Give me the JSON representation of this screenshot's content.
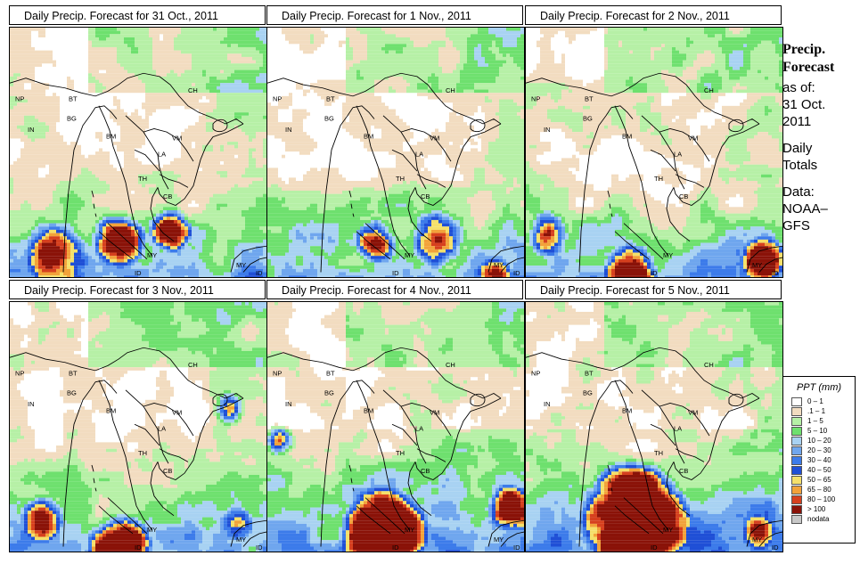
{
  "panels": [
    {
      "title": "Daily Precip. Forecast for  31 Oct., 2011"
    },
    {
      "title": "Daily Precip. Forecast for  1 Nov., 2011"
    },
    {
      "title": "Daily Precip. Forecast for  2 Nov., 2011"
    },
    {
      "title": "Daily Precip. Forecast for  3 Nov., 2011"
    },
    {
      "title": "Daily Precip. Forecast for  4 Nov., 2011"
    },
    {
      "title": "Daily Precip. Forecast for  5 Nov., 2011"
    }
  ],
  "map_labels": [
    "NP",
    "BT",
    "BG",
    "IN",
    "BM",
    "CH",
    "VM",
    "LA",
    "TH",
    "CB",
    "MY",
    "MY",
    "ID",
    "ID"
  ],
  "sidebar": {
    "heading1": "Precip.",
    "heading2": "Forecast",
    "asof": "as of:",
    "date1": "31 Oct.",
    "date2": "2011",
    "daily": "Daily",
    "totals": "Totals",
    "data_label": "Data:",
    "source1": "NOAA–",
    "source2": "GFS"
  },
  "legend": {
    "title": "PPT (mm)",
    "items": [
      {
        "label": "0 – 1",
        "color": "#ffffff"
      },
      {
        "label": ".1 – 1",
        "color": "#f2dcc0"
      },
      {
        "label": "1 – 5",
        "color": "#b6f0a6"
      },
      {
        "label": "5 – 10",
        "color": "#6ee06e"
      },
      {
        "label": "10 – 20",
        "color": "#a8d2f2"
      },
      {
        "label": "20 – 30",
        "color": "#6fa6ee"
      },
      {
        "label": "30 – 40",
        "color": "#3c7bea"
      },
      {
        "label": "40 – 50",
        "color": "#1f4fd6"
      },
      {
        "label": "50 – 65",
        "color": "#f5e06a"
      },
      {
        "label": "65 – 80",
        "color": "#f2a23a"
      },
      {
        "label": "80 – 100",
        "color": "#d6401e"
      },
      {
        "label": "> 100",
        "color": "#8a1208"
      },
      {
        "label": "nodata",
        "color": "#c8c8c8"
      }
    ]
  }
}
